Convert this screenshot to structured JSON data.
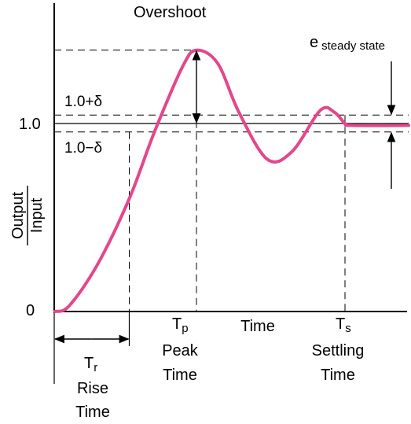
{
  "chart_data": {
    "type": "line",
    "title": "",
    "curve_color": "#e4468c",
    "series": [
      {
        "name": "",
        "points": [
          {
            "t": 0.0,
            "y": 0.0
          },
          {
            "t": 0.04,
            "y": 0.03
          },
          {
            "t": 0.12,
            "y": 0.25
          },
          {
            "t": 0.21,
            "y": 0.6
          },
          {
            "t": 0.28,
            "y": 0.95
          },
          {
            "t": 0.36,
            "y": 1.3
          },
          {
            "t": 0.4,
            "y": 1.39
          },
          {
            "t": 0.46,
            "y": 1.32
          },
          {
            "t": 0.52,
            "y": 1.06
          },
          {
            "t": 0.6,
            "y": 0.81
          },
          {
            "t": 0.67,
            "y": 0.85
          },
          {
            "t": 0.75,
            "y": 1.07
          },
          {
            "t": 0.79,
            "y": 1.06
          },
          {
            "t": 0.82,
            "y": 1.0
          },
          {
            "t": 0.84,
            "y": 0.99
          },
          {
            "t": 1.0,
            "y": 0.99
          }
        ]
      }
    ],
    "xlim": [
      0,
      1
    ],
    "ylim": [
      0,
      1.55
    ],
    "levels": {
      "final": 1.0,
      "upper_band": 1.045,
      "lower_band": 0.955,
      "peak": 1.39
    },
    "key_times": {
      "rise": 0.21,
      "peak": 0.4,
      "settling": 0.82
    },
    "ylabel": {
      "numerator": "Output",
      "denominator": "Input"
    },
    "xlabel": "Time",
    "y_ticks": [
      "0",
      "1.0"
    ],
    "labels": {
      "overshoot": "Overshoot",
      "upper_band_base": "1.0+",
      "lower_band_base": "1.0−",
      "delta": "δ",
      "ess_base": "e",
      "ess_sub": "steady state",
      "tp_base": "T",
      "tp_sub": "p",
      "tp_line1": "Peak",
      "tp_line2": "Time",
      "tr_base": "T",
      "tr_sub": "r",
      "tr_line1": "Rise",
      "tr_line2": "Time",
      "ts_base": "T",
      "ts_sub": "s",
      "ts_line1": "Settling",
      "ts_line2": "Time"
    }
  }
}
